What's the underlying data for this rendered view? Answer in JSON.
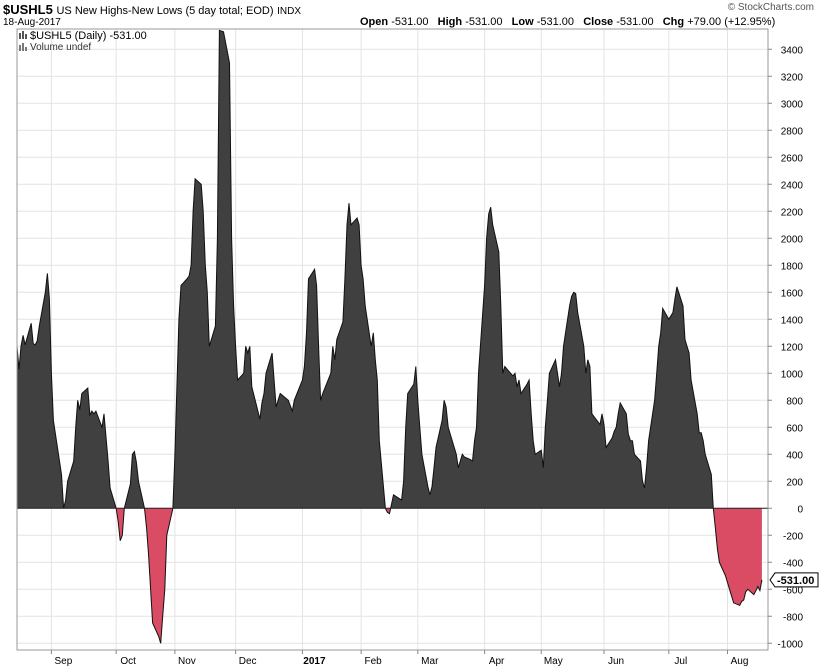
{
  "header": {
    "symbol": "$USHL5",
    "description": "US New Highs-New Lows (5 day total; EOD)",
    "exchange": "INDX",
    "date": "18-Aug-2017",
    "credit": "© StockCharts.com",
    "open_label": "Open",
    "open_value": "-531.00",
    "high_label": "High",
    "high_value": "-531.00",
    "low_label": "Low",
    "low_value": "-531.00",
    "close_label": "Close",
    "close_value": "-531.00",
    "chg_label": "Chg",
    "chg_value": "+79.00 (+12.95%)"
  },
  "legend": {
    "series_label": "$USHL5 (Daily) -531.00",
    "volume_label": "Volume undef"
  },
  "last_value_label": "-531.00",
  "colors": {
    "positive": "#404040",
    "negative": "#d94c64",
    "grid": "#e3e3e3",
    "last_box": "#ffffff"
  },
  "chart_data": {
    "type": "area",
    "title": "US New Highs-New Lows (5 day total; EOD)",
    "ylim": [
      -1050,
      3550
    ],
    "y_ticks": [
      -1000,
      -800,
      -600,
      -400,
      -200,
      0,
      200,
      400,
      600,
      800,
      1000,
      1200,
      1400,
      1600,
      1800,
      2000,
      2200,
      2400,
      2600,
      2800,
      3000,
      3200,
      3400
    ],
    "x_ticks": [
      {
        "label": "Sep",
        "date": "2016-09-01",
        "bold": false
      },
      {
        "label": "Oct",
        "date": "2016-10-03",
        "bold": false
      },
      {
        "label": "Nov",
        "date": "2016-11-01",
        "bold": false
      },
      {
        "label": "Dec",
        "date": "2016-12-01",
        "bold": false
      },
      {
        "label": "2017",
        "date": "2017-01-03",
        "bold": true
      },
      {
        "label": "Feb",
        "date": "2017-02-01",
        "bold": false
      },
      {
        "label": "Mar",
        "date": "2017-03-01",
        "bold": false
      },
      {
        "label": "Apr",
        "date": "2017-04-03",
        "bold": false
      },
      {
        "label": "May",
        "date": "2017-05-01",
        "bold": false
      },
      {
        "label": "Jun",
        "date": "2017-06-01",
        "bold": false
      },
      {
        "label": "Jul",
        "date": "2017-07-03",
        "bold": false
      },
      {
        "label": "Aug",
        "date": "2017-08-01",
        "bold": false
      }
    ],
    "x_range": [
      "2016-08-15",
      "2017-08-21"
    ],
    "series": [
      {
        "values": [
          [
            "2016-08-15",
            1200
          ],
          [
            "2016-08-16",
            1030
          ],
          [
            "2016-08-17",
            1200
          ],
          [
            "2016-08-18",
            1280
          ],
          [
            "2016-08-19",
            1210
          ],
          [
            "2016-08-22",
            1370
          ],
          [
            "2016-08-23",
            1220
          ],
          [
            "2016-08-24",
            1210
          ],
          [
            "2016-08-25",
            1240
          ],
          [
            "2016-08-26",
            1350
          ],
          [
            "2016-08-29",
            1600
          ],
          [
            "2016-08-30",
            1740
          ],
          [
            "2016-08-31",
            1550
          ],
          [
            "2016-09-01",
            1000
          ],
          [
            "2016-09-02",
            650
          ],
          [
            "2016-09-06",
            250
          ],
          [
            "2016-09-07",
            0
          ],
          [
            "2016-09-08",
            60
          ],
          [
            "2016-09-09",
            200
          ],
          [
            "2016-09-12",
            350
          ],
          [
            "2016-09-13",
            600
          ],
          [
            "2016-09-14",
            800
          ],
          [
            "2016-09-15",
            730
          ],
          [
            "2016-09-16",
            850
          ],
          [
            "2016-09-19",
            890
          ],
          [
            "2016-09-20",
            690
          ],
          [
            "2016-09-21",
            720
          ],
          [
            "2016-09-22",
            700
          ],
          [
            "2016-09-23",
            720
          ],
          [
            "2016-09-26",
            600
          ],
          [
            "2016-09-27",
            700
          ],
          [
            "2016-09-28",
            520
          ],
          [
            "2016-09-29",
            350
          ],
          [
            "2016-09-30",
            150
          ],
          [
            "2016-10-03",
            0
          ],
          [
            "2016-10-04",
            -100
          ],
          [
            "2016-10-05",
            -240
          ],
          [
            "2016-10-06",
            -200
          ],
          [
            "2016-10-07",
            0
          ],
          [
            "2016-10-10",
            180
          ],
          [
            "2016-10-11",
            400
          ],
          [
            "2016-10-12",
            420
          ],
          [
            "2016-10-13",
            340
          ],
          [
            "2016-10-14",
            200
          ],
          [
            "2016-10-17",
            0
          ],
          [
            "2016-10-18",
            -150
          ],
          [
            "2016-10-19",
            -350
          ],
          [
            "2016-10-20",
            -600
          ],
          [
            "2016-10-21",
            -850
          ],
          [
            "2016-10-24",
            -950
          ],
          [
            "2016-10-25",
            -1000
          ],
          [
            "2016-10-26",
            -800
          ],
          [
            "2016-10-27",
            -600
          ],
          [
            "2016-10-28",
            -200
          ],
          [
            "2016-10-31",
            0
          ],
          [
            "2016-11-01",
            400
          ],
          [
            "2016-11-02",
            900
          ],
          [
            "2016-11-03",
            1400
          ],
          [
            "2016-11-04",
            1650
          ],
          [
            "2016-11-07",
            1700
          ],
          [
            "2016-11-08",
            1720
          ],
          [
            "2016-11-09",
            1800
          ],
          [
            "2016-11-10",
            2200
          ],
          [
            "2016-11-11",
            2440
          ],
          [
            "2016-11-14",
            2400
          ],
          [
            "2016-11-15",
            2200
          ],
          [
            "2016-11-16",
            1800
          ],
          [
            "2016-11-17",
            1600
          ],
          [
            "2016-11-18",
            1200
          ],
          [
            "2016-11-21",
            1350
          ],
          [
            "2016-11-22",
            2000
          ],
          [
            "2016-11-23",
            3540
          ],
          [
            "2016-11-25",
            3530
          ],
          [
            "2016-11-28",
            3300
          ],
          [
            "2016-11-29",
            2000
          ],
          [
            "2016-11-30",
            1500
          ],
          [
            "2016-12-01",
            1200
          ],
          [
            "2016-12-02",
            950
          ],
          [
            "2016-12-05",
            1000
          ],
          [
            "2016-12-06",
            1200
          ],
          [
            "2016-12-07",
            1150
          ],
          [
            "2016-12-08",
            1200
          ],
          [
            "2016-12-09",
            900
          ],
          [
            "2016-12-12",
            720
          ],
          [
            "2016-12-13",
            660
          ],
          [
            "2016-12-14",
            780
          ],
          [
            "2016-12-15",
            850
          ],
          [
            "2016-12-16",
            1000
          ],
          [
            "2016-12-19",
            1150
          ],
          [
            "2016-12-20",
            950
          ],
          [
            "2016-12-21",
            750
          ],
          [
            "2016-12-22",
            800
          ],
          [
            "2016-12-23",
            850
          ],
          [
            "2016-12-27",
            800
          ],
          [
            "2016-12-28",
            760
          ],
          [
            "2016-12-29",
            720
          ],
          [
            "2016-12-30",
            800
          ],
          [
            "2017-01-03",
            950
          ],
          [
            "2017-01-04",
            1050
          ],
          [
            "2017-01-05",
            1300
          ],
          [
            "2017-01-06",
            1700
          ],
          [
            "2017-01-09",
            1770
          ],
          [
            "2017-01-10",
            1650
          ],
          [
            "2017-01-11",
            1200
          ],
          [
            "2017-01-12",
            800
          ],
          [
            "2017-01-13",
            850
          ],
          [
            "2017-01-17",
            1000
          ],
          [
            "2017-01-18",
            1200
          ],
          [
            "2017-01-19",
            1100
          ],
          [
            "2017-01-20",
            1250
          ],
          [
            "2017-01-23",
            1380
          ],
          [
            "2017-01-24",
            1700
          ],
          [
            "2017-01-25",
            2100
          ],
          [
            "2017-01-26",
            2260
          ],
          [
            "2017-01-27",
            2100
          ],
          [
            "2017-01-30",
            2150
          ],
          [
            "2017-01-31",
            2100
          ],
          [
            "2017-02-01",
            1800
          ],
          [
            "2017-02-02",
            1700
          ],
          [
            "2017-02-03",
            1500
          ],
          [
            "2017-02-06",
            1200
          ],
          [
            "2017-02-07",
            1300
          ],
          [
            "2017-02-08",
            1100
          ],
          [
            "2017-02-09",
            950
          ],
          [
            "2017-02-10",
            500
          ],
          [
            "2017-02-13",
            0
          ],
          [
            "2017-02-14",
            -30
          ],
          [
            "2017-02-15",
            -40
          ],
          [
            "2017-02-16",
            30
          ],
          [
            "2017-02-17",
            100
          ],
          [
            "2017-02-21",
            60
          ],
          [
            "2017-02-22",
            200
          ],
          [
            "2017-02-23",
            600
          ],
          [
            "2017-02-24",
            850
          ],
          [
            "2017-02-27",
            920
          ],
          [
            "2017-02-28",
            1050
          ],
          [
            "2017-03-01",
            800
          ],
          [
            "2017-03-02",
            600
          ],
          [
            "2017-03-03",
            400
          ],
          [
            "2017-03-06",
            160
          ],
          [
            "2017-03-07",
            100
          ],
          [
            "2017-03-08",
            160
          ],
          [
            "2017-03-09",
            300
          ],
          [
            "2017-03-10",
            450
          ],
          [
            "2017-03-13",
            650
          ],
          [
            "2017-03-14",
            800
          ],
          [
            "2017-03-15",
            750
          ],
          [
            "2017-03-16",
            600
          ],
          [
            "2017-03-17",
            550
          ],
          [
            "2017-03-20",
            400
          ],
          [
            "2017-03-21",
            300
          ],
          [
            "2017-03-22",
            350
          ],
          [
            "2017-03-23",
            400
          ],
          [
            "2017-03-24",
            380
          ],
          [
            "2017-03-27",
            360
          ],
          [
            "2017-03-28",
            350
          ],
          [
            "2017-03-29",
            500
          ],
          [
            "2017-03-30",
            600
          ],
          [
            "2017-03-31",
            1000
          ],
          [
            "2017-04-03",
            1650
          ],
          [
            "2017-04-04",
            2000
          ],
          [
            "2017-04-05",
            2180
          ],
          [
            "2017-04-06",
            2230
          ],
          [
            "2017-04-07",
            2100
          ],
          [
            "2017-04-10",
            1900
          ],
          [
            "2017-04-11",
            1500
          ],
          [
            "2017-04-12",
            1000
          ],
          [
            "2017-04-13",
            1050
          ],
          [
            "2017-04-17",
            980
          ],
          [
            "2017-04-18",
            1000
          ],
          [
            "2017-04-19",
            900
          ],
          [
            "2017-04-20",
            950
          ],
          [
            "2017-04-21",
            850
          ],
          [
            "2017-04-24",
            920
          ],
          [
            "2017-04-25",
            950
          ],
          [
            "2017-04-26",
            700
          ],
          [
            "2017-04-27",
            500
          ],
          [
            "2017-04-28",
            400
          ],
          [
            "2017-05-01",
            430
          ],
          [
            "2017-05-02",
            300
          ],
          [
            "2017-05-03",
            600
          ],
          [
            "2017-05-04",
            800
          ],
          [
            "2017-05-05",
            1000
          ],
          [
            "2017-05-08",
            1100
          ],
          [
            "2017-05-09",
            1000
          ],
          [
            "2017-05-10",
            900
          ],
          [
            "2017-05-11",
            1000
          ],
          [
            "2017-05-12",
            1200
          ],
          [
            "2017-05-15",
            1500
          ],
          [
            "2017-05-16",
            1570
          ],
          [
            "2017-05-17",
            1600
          ],
          [
            "2017-05-18",
            1590
          ],
          [
            "2017-05-19",
            1450
          ],
          [
            "2017-05-22",
            1200
          ],
          [
            "2017-05-23",
            1000
          ],
          [
            "2017-05-24",
            1100
          ],
          [
            "2017-05-25",
            1050
          ],
          [
            "2017-05-26",
            700
          ],
          [
            "2017-05-30",
            620
          ],
          [
            "2017-05-31",
            700
          ],
          [
            "2017-06-01",
            620
          ],
          [
            "2017-06-02",
            450
          ],
          [
            "2017-06-05",
            520
          ],
          [
            "2017-06-06",
            570
          ],
          [
            "2017-06-07",
            600
          ],
          [
            "2017-06-08",
            700
          ],
          [
            "2017-06-09",
            780
          ],
          [
            "2017-06-12",
            700
          ],
          [
            "2017-06-13",
            550
          ],
          [
            "2017-06-14",
            500
          ],
          [
            "2017-06-15",
            500
          ],
          [
            "2017-06-16",
            400
          ],
          [
            "2017-06-19",
            350
          ],
          [
            "2017-06-20",
            200
          ],
          [
            "2017-06-21",
            150
          ],
          [
            "2017-06-22",
            300
          ],
          [
            "2017-06-23",
            500
          ],
          [
            "2017-06-26",
            800
          ],
          [
            "2017-06-27",
            1000
          ],
          [
            "2017-06-28",
            1200
          ],
          [
            "2017-06-29",
            1300
          ],
          [
            "2017-06-30",
            1480
          ],
          [
            "2017-07-03",
            1400
          ],
          [
            "2017-07-05",
            1450
          ],
          [
            "2017-07-06",
            1550
          ],
          [
            "2017-07-07",
            1640
          ],
          [
            "2017-07-10",
            1500
          ],
          [
            "2017-07-11",
            1250
          ],
          [
            "2017-07-12",
            1200
          ],
          [
            "2017-07-13",
            1150
          ],
          [
            "2017-07-14",
            950
          ],
          [
            "2017-07-17",
            700
          ],
          [
            "2017-07-18",
            560
          ],
          [
            "2017-07-19",
            560
          ],
          [
            "2017-07-20",
            500
          ],
          [
            "2017-07-21",
            400
          ],
          [
            "2017-07-24",
            250
          ],
          [
            "2017-07-25",
            0
          ],
          [
            "2017-07-26",
            -150
          ],
          [
            "2017-07-27",
            -300
          ],
          [
            "2017-07-28",
            -400
          ],
          [
            "2017-07-31",
            -500
          ],
          [
            "2017-08-01",
            -550
          ],
          [
            "2017-08-02",
            -600
          ],
          [
            "2017-08-03",
            -650
          ],
          [
            "2017-08-04",
            -700
          ],
          [
            "2017-08-07",
            -720
          ],
          [
            "2017-08-08",
            -690
          ],
          [
            "2017-08-09",
            -680
          ],
          [
            "2017-08-10",
            -620
          ],
          [
            "2017-08-11",
            -600
          ],
          [
            "2017-08-14",
            -640
          ],
          [
            "2017-08-15",
            -610
          ],
          [
            "2017-08-16",
            -580
          ],
          [
            "2017-08-17",
            -610
          ],
          [
            "2017-08-18",
            -531
          ]
        ]
      }
    ]
  }
}
